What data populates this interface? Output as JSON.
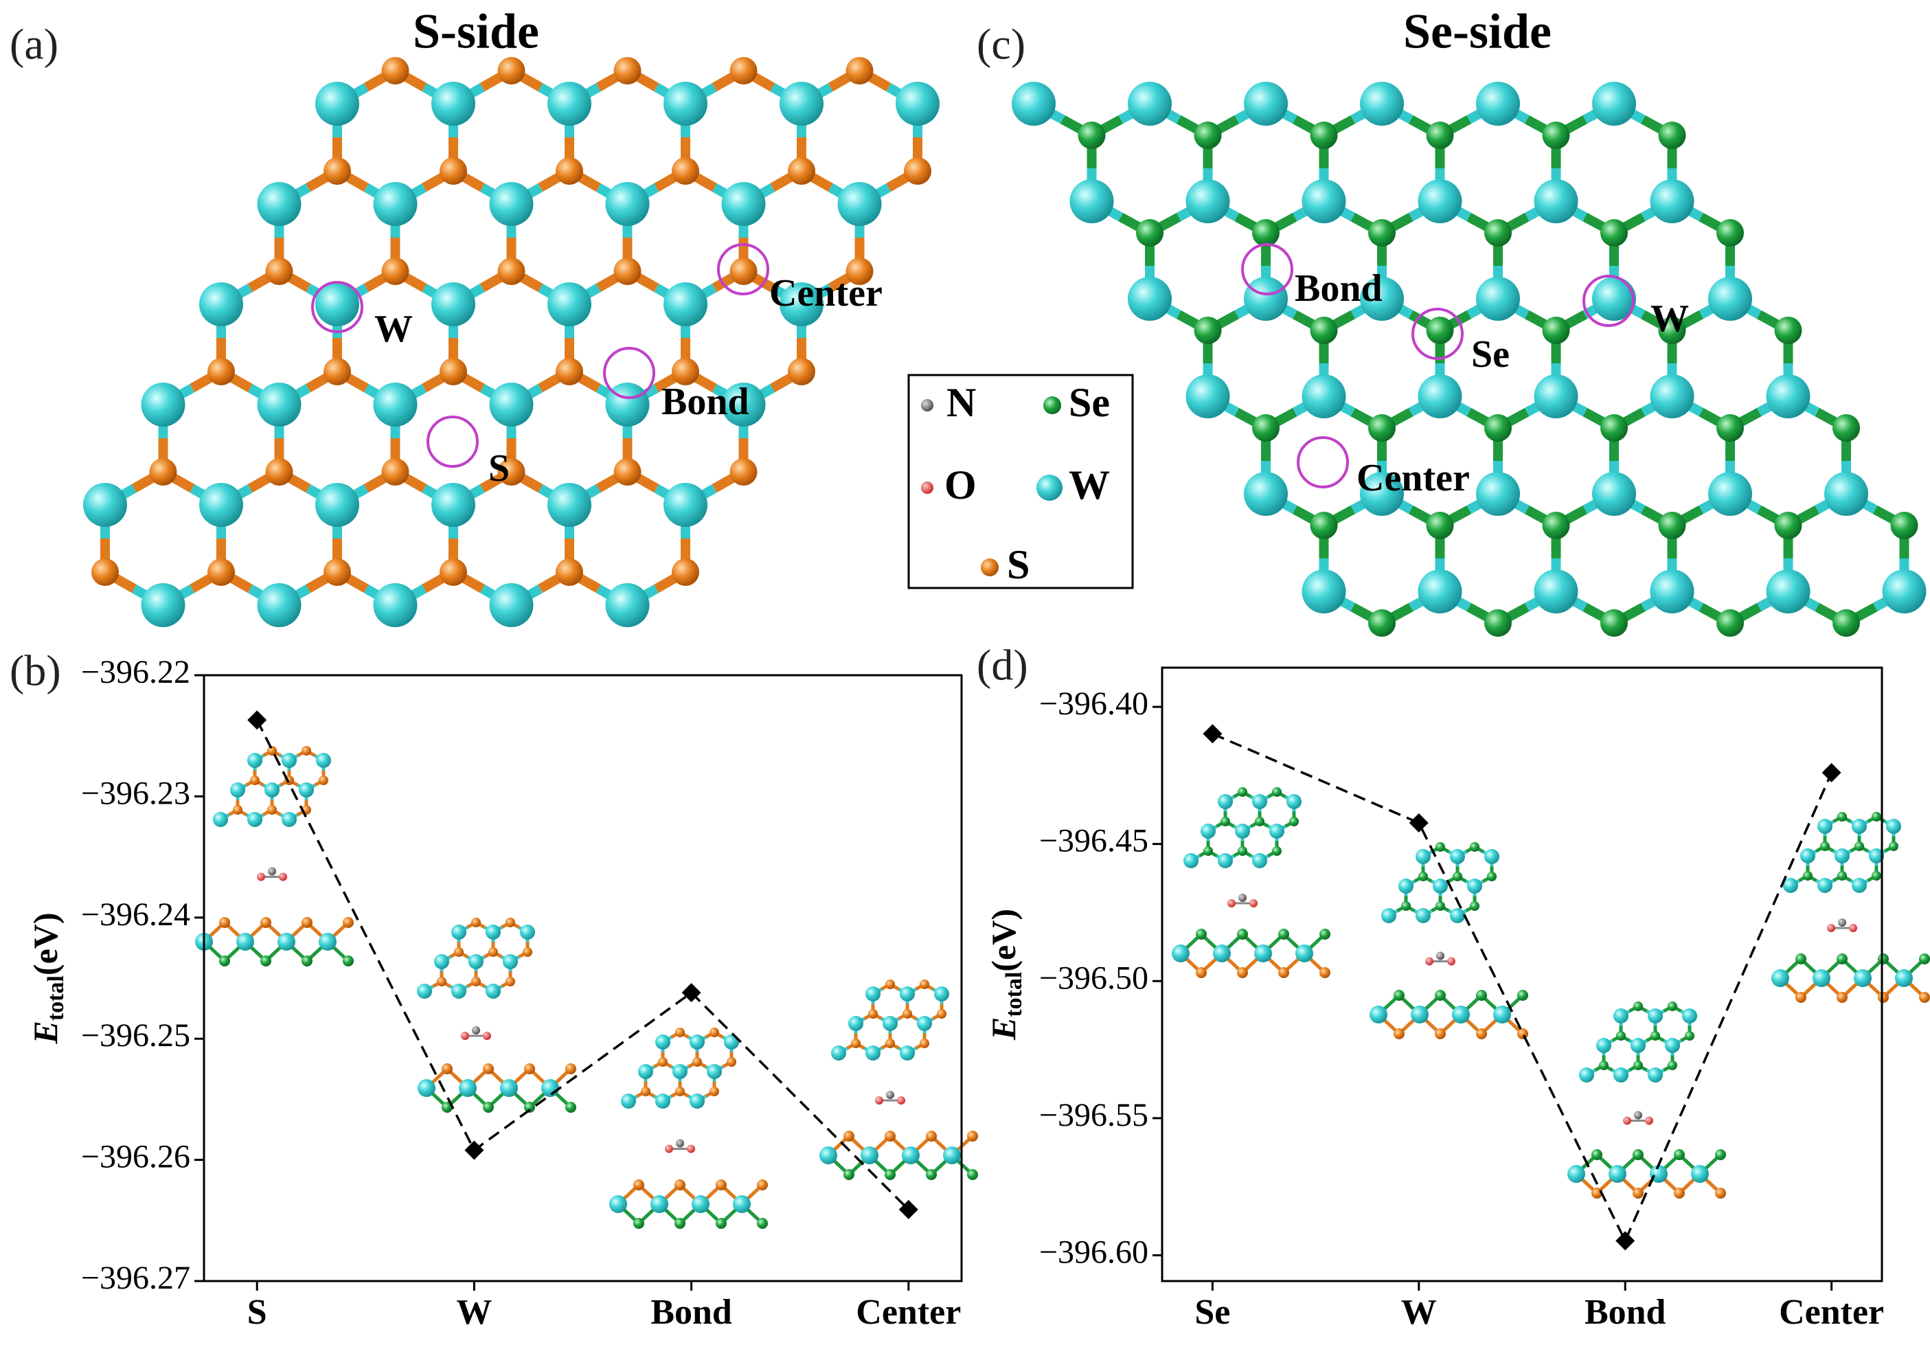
{
  "panels": {
    "a": {
      "label": "(a)",
      "title": "S-side",
      "sites": [
        "Center",
        "W",
        "Bond",
        "S"
      ]
    },
    "c": {
      "label": "(c)",
      "title": "Se-side",
      "sites": [
        "Bond",
        "Se",
        "W",
        "Center"
      ]
    },
    "b": {
      "label": "(b)"
    },
    "d": {
      "label": "(d)"
    },
    "legend": [
      "N",
      "Se",
      "O",
      "W",
      "S"
    ]
  },
  "chart_data": [
    {
      "type": "line",
      "categories": [
        "S",
        "W",
        "Bond",
        "Center"
      ],
      "values": [
        -396.2237,
        -396.2592,
        -396.2462,
        -396.2641
      ],
      "color": "#000000",
      "line_style": "dashed",
      "marker": "diamond",
      "ylabel": {
        "symbol": "E",
        "subscript": "total",
        "unit": "(eV)"
      },
      "ylim": [
        -396.27,
        -396.22
      ],
      "yticks": [
        {
          "value": -396.27,
          "label": "−396.27"
        },
        {
          "value": -396.26,
          "label": "−396.26"
        },
        {
          "value": -396.25,
          "label": "−396.25"
        },
        {
          "value": -396.24,
          "label": "−396.24"
        },
        {
          "value": -396.23,
          "label": "−396.23"
        },
        {
          "value": -396.22,
          "label": "−396.22"
        }
      ]
    },
    {
      "type": "line",
      "categories": [
        "Se",
        "W",
        "Bond",
        "Center"
      ],
      "values": [
        -396.4098,
        -396.4423,
        -396.5947,
        -396.424
      ],
      "color": "#000000",
      "line_style": "dashed",
      "marker": "diamond",
      "ylabel": {
        "symbol": "E",
        "subscript": "total",
        "unit": "(eV)"
      },
      "ylim": [
        -396.6094,
        -396.3857
      ],
      "yticks": [
        {
          "value": -396.6,
          "label": "−396.60"
        },
        {
          "value": -396.55,
          "label": "−396.55"
        },
        {
          "value": -396.5,
          "label": "−396.50"
        },
        {
          "value": -396.45,
          "label": "−396.45"
        },
        {
          "value": -396.4,
          "label": "−396.40"
        }
      ]
    }
  ]
}
